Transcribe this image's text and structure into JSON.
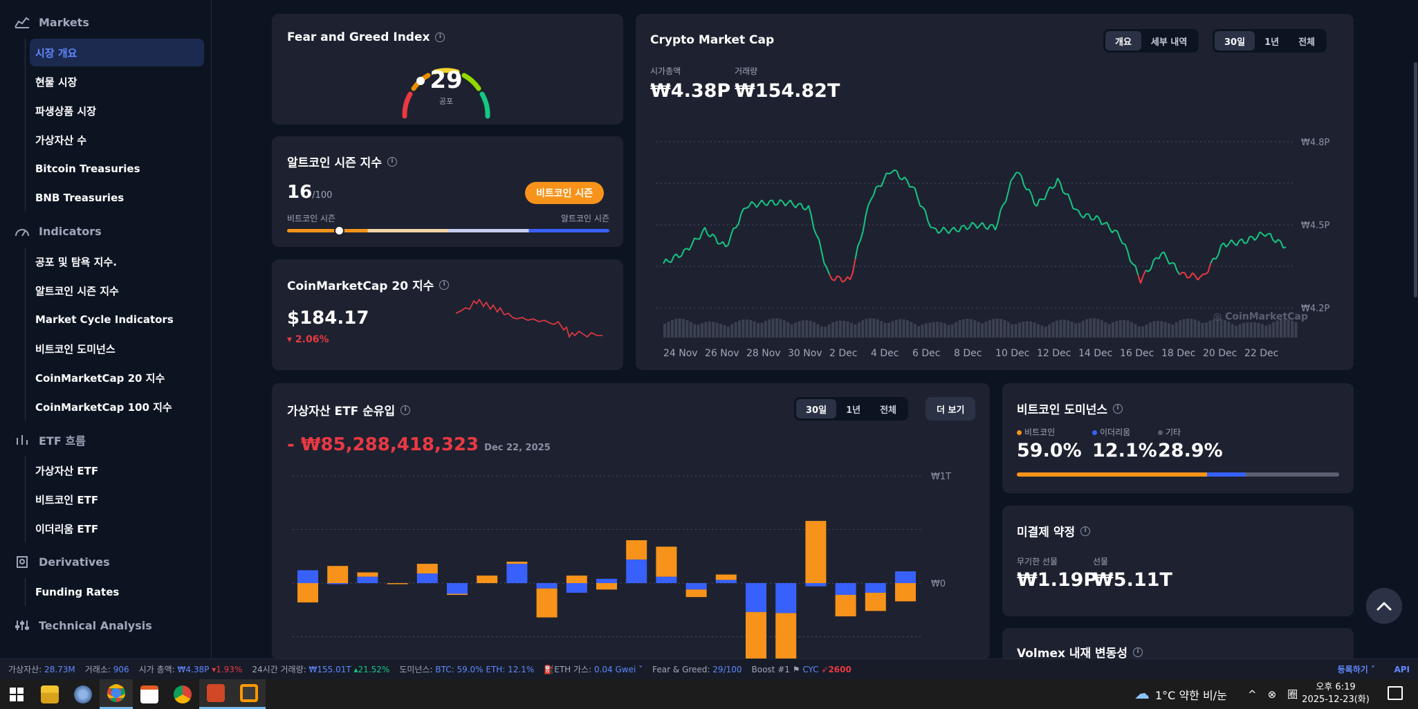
{
  "sidebar": {
    "sections": [
      {
        "icon": "bar-chart-icon",
        "title": "Markets",
        "items": [
          {
            "label": "시장 개요",
            "active": true
          },
          {
            "label": "현물 시장"
          },
          {
            "label": "파생상품 시장"
          },
          {
            "label": "가상자산 수"
          },
          {
            "label": "Bitcoin Treasuries"
          },
          {
            "label": "BNB Treasuries"
          }
        ]
      },
      {
        "icon": "gauge-icon",
        "title": "Indicators",
        "items": [
          {
            "label": "공포 및 탐욕 지수."
          },
          {
            "label": "알트코인 시즌 지수"
          },
          {
            "label": "Market Cycle Indicators"
          },
          {
            "label": "비트코인 도미넌스"
          },
          {
            "label": "CoinMarketCap 20 지수"
          },
          {
            "label": "CoinMarketCap 100 지수"
          }
        ]
      },
      {
        "icon": "columns-icon",
        "title": "ETF 흐름",
        "items": [
          {
            "label": "가상자산 ETF"
          },
          {
            "label": "비트코인 ETF"
          },
          {
            "label": "이더리움 ETF"
          }
        ]
      },
      {
        "icon": "derivatives-icon",
        "title": "Derivatives",
        "items": [
          {
            "label": "Funding Rates"
          }
        ]
      },
      {
        "icon": "sliders-icon",
        "title": "Technical Analysis",
        "items": []
      }
    ]
  },
  "fear_greed": {
    "title": "Fear and Greed Index",
    "value": "29",
    "label": "공포",
    "level": 29
  },
  "altcoin": {
    "title": "알트코인 시즌 지수",
    "value": "16",
    "max": "/100",
    "badge": "비트코인 시즌",
    "left_label": "비트코인 시즌",
    "right_label": "알트코인 시즌",
    "level": 16
  },
  "cmc20": {
    "title": "CoinMarketCap 20 지수",
    "price": "$184.17",
    "change": "2.06%"
  },
  "market_cap": {
    "title": "Crypto Market Cap",
    "tabs1": [
      "개요",
      "세부 내역"
    ],
    "tabs2": [
      "30일",
      "1년",
      "전체"
    ],
    "cap_label": "시가총액",
    "cap_value": "₩4.38P",
    "vol_label": "거래량",
    "vol_value": "₩154.82T",
    "watermark": "CoinMarketCap"
  },
  "etf": {
    "title": "가상자산 ETF 순유입",
    "tabs": [
      "30일",
      "1년",
      "전체"
    ],
    "more": "더 보기",
    "value": "- ₩85,288,418,323",
    "date": "Dec 22, 2025"
  },
  "dominance": {
    "title": "비트코인 도미넌스",
    "items": [
      {
        "name": "비트코인",
        "value": "59.0%",
        "pct": 59.0,
        "color": "#f7931a"
      },
      {
        "name": "이더리움",
        "value": "12.1%",
        "pct": 12.1,
        "color": "#3861fb"
      },
      {
        "name": "기타",
        "value": "28.9%",
        "pct": 28.9,
        "color": "#5a6072"
      }
    ]
  },
  "open_interest": {
    "title": "미결제 약정",
    "perp_label": "무기한 선물",
    "perp_value": "₩1.19P",
    "fut_label": "선물",
    "fut_value": "₩5.11T"
  },
  "volmex": {
    "title": "Volmex 내재 변동성"
  },
  "ticker": {
    "assets_label": "가상자산:",
    "assets": "28.73M",
    "exchanges_label": "거래소:",
    "exchanges": "906",
    "cap_label": "시가 총액:",
    "cap": "₩4.38P",
    "cap_change": "1.93%",
    "vol_label": "24시간 거래량:",
    "vol": "₩155.01T",
    "vol_change": "21.52%",
    "dom_label": "도미넌스:",
    "dom": "BTC: 59.0% ETH: 12.1%",
    "gas_label": "ETH 가스:",
    "gas": "0.04 Gwei",
    "fg_label": "Fear & Greed:",
    "fg": "29/100",
    "boost_label": "Boost #1",
    "boost_coin": "CYC",
    "boost_value": "2600",
    "register": "등록하기",
    "api": "API"
  },
  "taskbar": {
    "weather": "1°C  약한 비/눈",
    "time": "오후 6:19",
    "date": "2025-12-23(화)"
  },
  "chart_data": [
    {
      "type": "line",
      "title": "Crypto Market Cap",
      "x_ticks": [
        "24 Nov",
        "26 Nov",
        "28 Nov",
        "30 Nov",
        "2 Dec",
        "4 Dec",
        "6 Dec",
        "8 Dec",
        "10 Dec",
        "12 Dec",
        "14 Dec",
        "16 Dec",
        "18 Dec",
        "20 Dec",
        "22 Dec"
      ],
      "y_ticks": [
        "₩4.8P",
        "₩4.5P",
        "₩4.2P"
      ],
      "ylim": [
        4.2,
        4.8
      ],
      "x": [
        "23 Nov",
        "24 Nov",
        "25 Nov",
        "26 Nov",
        "27 Nov",
        "28 Nov",
        "29 Nov",
        "30 Nov",
        "1 Dec",
        "2 Dec",
        "3 Dec",
        "4 Dec",
        "5 Dec",
        "6 Dec",
        "7 Dec",
        "8 Dec",
        "9 Dec",
        "10 Dec",
        "11 Dec",
        "12 Dec",
        "13 Dec",
        "14 Dec",
        "15 Dec",
        "16 Dec",
        "17 Dec",
        "18 Dec",
        "19 Dec",
        "20 Dec",
        "21 Dec",
        "22 Dec",
        "23 Dec"
      ],
      "values": [
        4.36,
        4.4,
        4.48,
        4.42,
        4.57,
        4.58,
        4.58,
        4.56,
        4.31,
        4.3,
        4.6,
        4.7,
        4.64,
        4.48,
        4.48,
        4.5,
        4.49,
        4.7,
        4.57,
        4.66,
        4.54,
        4.52,
        4.46,
        4.3,
        4.4,
        4.32,
        4.31,
        4.43,
        4.44,
        4.47,
        4.42
      ]
    },
    {
      "type": "bar",
      "title": "가상자산 ETF 순유입",
      "y_ticks": [
        "₩1T",
        "₩0"
      ],
      "series": [
        {
          "color": "#f7931a",
          "values": [
            -0.18,
            0.16,
            0.04,
            -0.01,
            0.09,
            -0.01,
            0.07,
            0.02,
            -0.27,
            0.07,
            -0.06,
            0.18,
            0.28,
            -0.07,
            0.05,
            -0.7,
            -0.62,
            0.58,
            -0.2,
            -0.17,
            -0.17
          ]
        },
        {
          "color": "#3861fb",
          "values": [
            0.12,
            -0.01,
            0.06,
            0.0,
            0.09,
            -0.1,
            0.0,
            0.18,
            -0.05,
            -0.09,
            0.04,
            0.22,
            0.06,
            -0.06,
            0.03,
            -0.27,
            -0.28,
            -0.03,
            -0.11,
            -0.09,
            0.11
          ]
        }
      ]
    }
  ]
}
